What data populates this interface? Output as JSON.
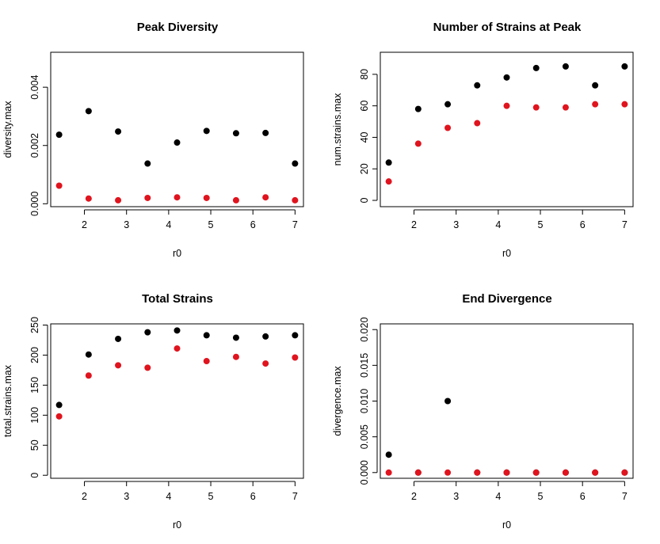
{
  "chart_data": [
    {
      "type": "scatter",
      "title": "Peak Diversity",
      "xlabel": "r0",
      "ylabel": "diversity.max",
      "xlim": [
        1.2,
        7.2
      ],
      "ylim": [
        -0.0001,
        0.0052
      ],
      "xticks": [
        2,
        3,
        4,
        5,
        6,
        7
      ],
      "yticks": [
        0,
        0.002,
        0.004
      ],
      "ytick_labels": [
        "0.000",
        "0.002",
        "0.004"
      ],
      "series": [
        {
          "color": "#000000",
          "x": [
            1.4,
            2.1,
            2.8,
            3.5,
            4.2,
            4.9,
            5.6,
            6.3,
            7.0
          ],
          "y": [
            0.00237,
            0.00318,
            0.00248,
            0.00138,
            0.0021,
            0.0025,
            0.00242,
            0.00243,
            0.00138
          ]
        },
        {
          "color": "#e0141e",
          "x": [
            1.4,
            2.1,
            2.8,
            3.5,
            4.2,
            4.9,
            5.6,
            6.3,
            7.0
          ],
          "y": [
            0.00062,
            0.00018,
            0.00012,
            0.0002,
            0.00022,
            0.0002,
            0.00012,
            0.00022,
            0.00012
          ]
        }
      ]
    },
    {
      "type": "scatter",
      "title": "Number of Strains at Peak",
      "xlabel": "r0",
      "ylabel": "num.strains.max",
      "xlim": [
        1.2,
        7.2
      ],
      "ylim": [
        -4,
        94
      ],
      "xticks": [
        2,
        3,
        4,
        5,
        6,
        7
      ],
      "yticks": [
        0,
        20,
        40,
        60,
        80
      ],
      "ytick_labels": [
        "0",
        "20",
        "40",
        "60",
        "80"
      ],
      "series": [
        {
          "color": "#000000",
          "x": [
            1.4,
            2.1,
            2.8,
            3.5,
            4.2,
            4.9,
            5.6,
            6.3,
            7.0
          ],
          "y": [
            24,
            58,
            61,
            73,
            78,
            84,
            85,
            73,
            85
          ]
        },
        {
          "color": "#e0141e",
          "x": [
            1.4,
            2.1,
            2.8,
            3.5,
            4.2,
            4.9,
            5.6,
            6.3,
            7.0
          ],
          "y": [
            12,
            36,
            46,
            49,
            60,
            59,
            59,
            61,
            61
          ]
        }
      ]
    },
    {
      "type": "scatter",
      "title": "Total Strains",
      "xlabel": "r0",
      "ylabel": "total.strains.max",
      "xlim": [
        1.2,
        7.2
      ],
      "ylim": [
        -5,
        252
      ],
      "xticks": [
        2,
        3,
        4,
        5,
        6,
        7
      ],
      "yticks": [
        0,
        50,
        100,
        150,
        200,
        250
      ],
      "ytick_labels": [
        "0",
        "50",
        "100",
        "150",
        "200",
        "250"
      ],
      "series": [
        {
          "color": "#000000",
          "x": [
            1.4,
            2.1,
            2.8,
            3.5,
            4.2,
            4.9,
            5.6,
            6.3,
            7.0
          ],
          "y": [
            117,
            201,
            227,
            238,
            241,
            233,
            229,
            231,
            233
          ]
        },
        {
          "color": "#e0141e",
          "x": [
            1.4,
            2.1,
            2.8,
            3.5,
            4.2,
            4.9,
            5.6,
            6.3,
            7.0
          ],
          "y": [
            98,
            166,
            183,
            179,
            211,
            190,
            197,
            186,
            196
          ]
        }
      ]
    },
    {
      "type": "scatter",
      "title": "End Divergence",
      "xlabel": "r0",
      "ylabel": "divergence.max",
      "xlim": [
        1.2,
        7.2
      ],
      "ylim": [
        -0.0008,
        0.0208
      ],
      "xticks": [
        2,
        3,
        4,
        5,
        6,
        7
      ],
      "yticks": [
        0,
        0.005,
        0.01,
        0.015,
        0.02
      ],
      "ytick_labels": [
        "0.000",
        "0.005",
        "0.010",
        "0.015",
        "0.020"
      ],
      "series": [
        {
          "color": "#000000",
          "x": [
            1.4,
            2.1,
            2.8,
            3.5,
            4.2,
            4.9,
            5.6,
            6.3,
            7.0
          ],
          "y": [
            0.0025,
            0.0,
            0.01,
            0.0,
            0.0,
            0.0,
            0.0,
            0.0,
            0.0
          ]
        },
        {
          "color": "#e0141e",
          "x": [
            1.4,
            2.1,
            2.8,
            3.5,
            4.2,
            4.9,
            5.6,
            6.3,
            7.0
          ],
          "y": [
            0.0,
            0.0,
            0.0,
            0.0,
            0.0,
            0.0,
            0.0,
            0.0,
            0.0
          ]
        }
      ]
    }
  ]
}
